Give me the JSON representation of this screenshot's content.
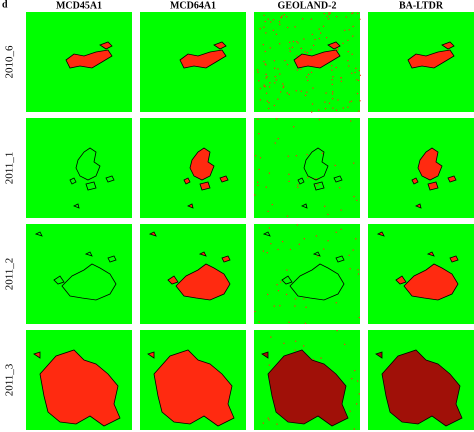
{
  "panel_label": "d",
  "columns": [
    "MCD45A1",
    "MCD64A1",
    "GEOLAND-2",
    "BA-LTDR"
  ],
  "rows": [
    "2010_6",
    "2011_1",
    "2011_2",
    "2011_3"
  ]
}
